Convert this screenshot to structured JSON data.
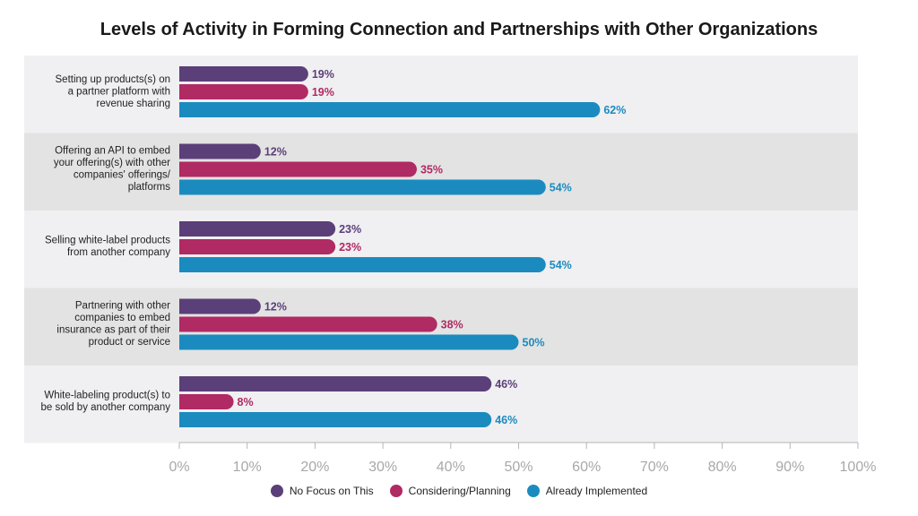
{
  "chart_data": {
    "type": "bar",
    "orientation": "horizontal",
    "title": "Levels of Activity in Forming Connection and Partnerships with Other Organizations",
    "categories": [
      [
        "Setting up products(s) on",
        "a partner platform with",
        "revenue sharing"
      ],
      [
        "Offering an API to embed",
        "your offering(s) with other",
        "companies' offerings/",
        "platforms"
      ],
      [
        "Selling white-label products",
        "from another company"
      ],
      [
        "Partnering with other",
        "companies to embed",
        "insurance as part of their",
        "product or service"
      ],
      [
        "White-labeling product(s) to",
        "be sold by another company"
      ]
    ],
    "series": [
      {
        "name": "No Focus on This",
        "color": "#5b3f78",
        "values": [
          19,
          12,
          23,
          12,
          46
        ]
      },
      {
        "name": "Considering/Planning",
        "color": "#b02a63",
        "values": [
          19,
          35,
          23,
          38,
          8
        ]
      },
      {
        "name": "Already Implemented",
        "color": "#1b8bbf",
        "values": [
          62,
          54,
          54,
          50,
          46
        ]
      }
    ],
    "value_suffix": "%",
    "xlim": [
      0,
      100
    ],
    "x_ticks": [
      "0%",
      "10%",
      "20%",
      "30%",
      "40%",
      "50%",
      "60%",
      "70%",
      "80%",
      "90%",
      "100%"
    ],
    "legend_position": "bottom",
    "band_colors": [
      "#f0eff2",
      "#e3e3e3"
    ]
  }
}
